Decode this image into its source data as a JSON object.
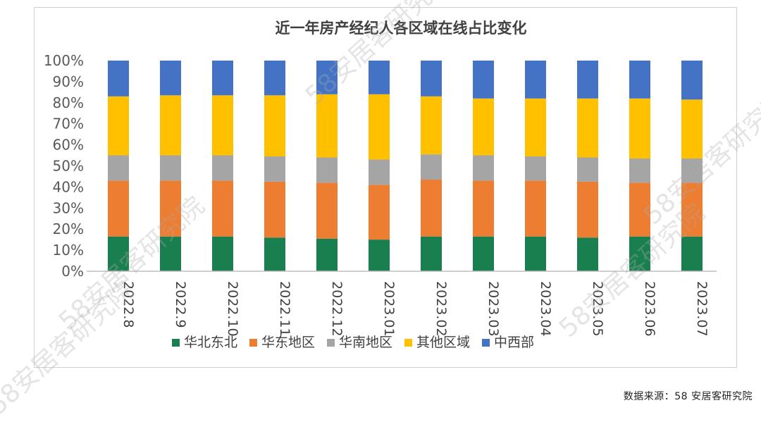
{
  "source_note": "数据来源：58 安居客研究院",
  "watermark": "58安居客研究院",
  "chart_data": {
    "type": "bar",
    "stacked": true,
    "percent": true,
    "title": "近一年房产经纪人各区域在线占比变化",
    "xlabel": "",
    "ylabel": "",
    "ylim": [
      0,
      100
    ],
    "y_ticks": [
      "0%",
      "10%",
      "20%",
      "30%",
      "40%",
      "50%",
      "60%",
      "70%",
      "80%",
      "90%",
      "100%"
    ],
    "categories": [
      "2022.8",
      "2022.9",
      "2022.10",
      "2022.11",
      "2022.12",
      "2023.01",
      "2023.02",
      "2023.03",
      "2023.04",
      "2023.05",
      "2023.06",
      "2023.07"
    ],
    "legend_position": "bottom",
    "series": [
      {
        "name": "华北东北",
        "color": "#1a7f4f",
        "values": [
          16.5,
          16.5,
          16.5,
          16,
          15.5,
          15,
          16.5,
          16.5,
          16.5,
          16,
          16.5,
          16.5
        ]
      },
      {
        "name": "华东地区",
        "color": "#ed7d31",
        "values": [
          26.5,
          26.5,
          26.5,
          26.5,
          26.5,
          26,
          27,
          26.5,
          26.5,
          26.5,
          25.5,
          25.5
        ]
      },
      {
        "name": "华南地区",
        "color": "#a5a5a5",
        "values": [
          12,
          12,
          12,
          12,
          12,
          12,
          12,
          12,
          11.5,
          11.5,
          11.5,
          11.5
        ]
      },
      {
        "name": "其他区域",
        "color": "#ffc000",
        "values": [
          28,
          28.5,
          28.5,
          29,
          30,
          31,
          27.5,
          27,
          27.5,
          28,
          28.5,
          28
        ]
      },
      {
        "name": "中西部",
        "color": "#4472c4",
        "values": [
          17,
          16.5,
          16.5,
          16.5,
          16,
          16,
          17,
          18,
          18,
          18,
          18,
          18.5
        ]
      }
    ]
  }
}
